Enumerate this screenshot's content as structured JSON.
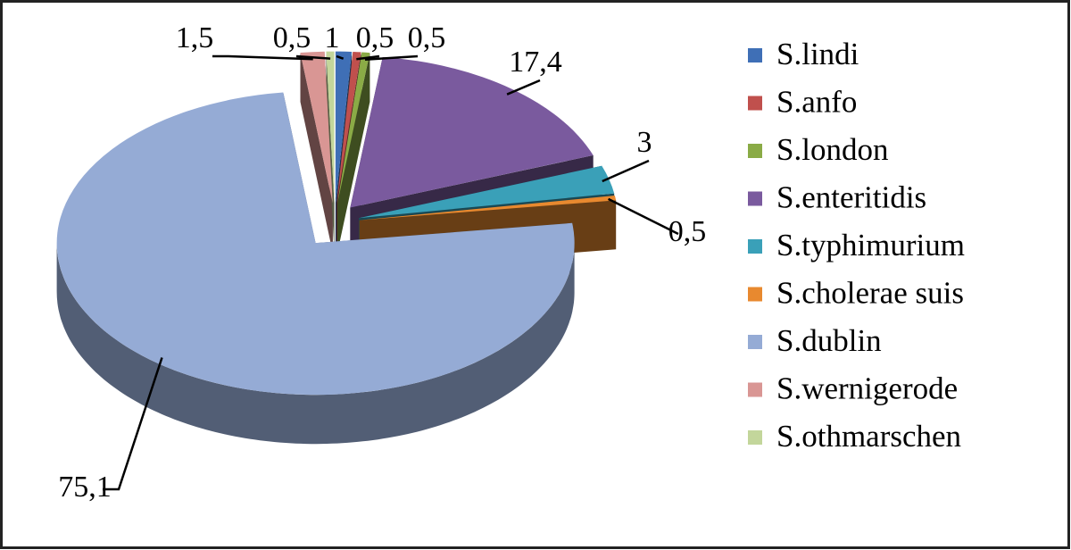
{
  "chart_data": {
    "type": "pie",
    "categories": [
      "S.lindi",
      "S.anfo",
      "S.london",
      "S.enteritidis",
      "S.typhimurium",
      "S.cholerae suis",
      "S.dublin",
      "S.wernigerode",
      "S.othmarschen"
    ],
    "values": [
      1,
      0.5,
      0.5,
      17.4,
      3,
      0.5,
      75.1,
      1.5,
      0.5
    ],
    "value_labels": [
      "1",
      "0,5",
      "0,5",
      "17,4",
      "3",
      "0,5",
      "75,1",
      "1,5",
      "0,5"
    ],
    "colors": [
      "#3f6fb6",
      "#c0504d",
      "#8aab46",
      "#7a5a9e",
      "#3aa0b8",
      "#e8892f",
      "#95abd5",
      "#d99694",
      "#c3d69b"
    ],
    "legend": "right"
  }
}
